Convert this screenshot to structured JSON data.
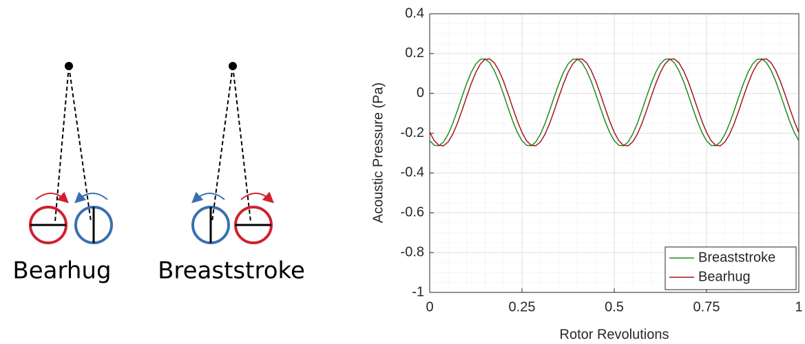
{
  "diagram": {
    "labels": [
      "Bearhug",
      "Breaststroke"
    ]
  },
  "chart_data": {
    "type": "line",
    "xlabel": "Rotor Revolutions",
    "ylabel": "Acoustic Pressure (Pa)",
    "x": [
      0,
      0.0125,
      0.025,
      0.0375,
      0.05,
      0.0625,
      0.075,
      0.0875,
      0.1,
      0.1125,
      0.125,
      0.1375,
      0.15,
      0.1625,
      0.175,
      0.1875,
      0.2,
      0.2125,
      0.225,
      0.2375,
      0.25,
      0.2625,
      0.275,
      0.2875,
      0.3,
      0.3125,
      0.325,
      0.3375,
      0.35,
      0.3625,
      0.375,
      0.3875,
      0.4,
      0.4125,
      0.425,
      0.4375,
      0.45,
      0.4625,
      0.475,
      0.4875,
      0.5,
      0.5125,
      0.525,
      0.5375,
      0.55,
      0.5625,
      0.575,
      0.5875,
      0.6,
      0.6125,
      0.625,
      0.6375,
      0.65,
      0.6625,
      0.675,
      0.6875,
      0.7,
      0.7125,
      0.725,
      0.7375,
      0.75,
      0.7625,
      0.775,
      0.7875,
      0.8,
      0.8125,
      0.825,
      0.8375,
      0.85,
      0.8625,
      0.875,
      0.8875,
      0.9,
      0.9125,
      0.925,
      0.9375,
      0.95,
      0.9625,
      0.975,
      0.9875,
      1
    ],
    "series": [
      {
        "name": "Breaststroke",
        "color": "#1e8c1e",
        "values": [
          -0.238,
          -0.261,
          -0.263,
          -0.244,
          -0.205,
          -0.151,
          -0.086,
          -0.017,
          0.049,
          0.106,
          0.148,
          0.171,
          0.173,
          0.154,
          0.115,
          0.061,
          -0.004,
          -0.073,
          -0.139,
          -0.196,
          -0.238,
          -0.261,
          -0.263,
          -0.244,
          -0.205,
          -0.151,
          -0.086,
          -0.017,
          0.049,
          0.106,
          0.148,
          0.171,
          0.173,
          0.154,
          0.115,
          0.061,
          -0.004,
          -0.073,
          -0.139,
          -0.196,
          -0.238,
          -0.261,
          -0.263,
          -0.244,
          -0.205,
          -0.151,
          -0.086,
          -0.017,
          0.049,
          0.106,
          0.148,
          0.171,
          0.173,
          0.154,
          0.115,
          0.061,
          -0.004,
          -0.073,
          -0.139,
          -0.196,
          -0.238,
          -0.261,
          -0.263,
          -0.244,
          -0.205,
          -0.151,
          -0.086,
          -0.017,
          0.049,
          0.106,
          0.148,
          0.171,
          0.173,
          0.154,
          0.115,
          0.061,
          -0.004,
          -0.073,
          -0.139,
          -0.196,
          -0.238
        ]
      },
      {
        "name": "Bearhug",
        "color": "#a3151f",
        "values": [
          -0.196,
          -0.238,
          -0.261,
          -0.263,
          -0.244,
          -0.205,
          -0.151,
          -0.086,
          -0.017,
          0.049,
          0.106,
          0.148,
          0.171,
          0.173,
          0.154,
          0.115,
          0.061,
          -0.004,
          -0.073,
          -0.139,
          -0.196,
          -0.238,
          -0.261,
          -0.263,
          -0.244,
          -0.205,
          -0.151,
          -0.086,
          -0.017,
          0.049,
          0.106,
          0.148,
          0.171,
          0.173,
          0.154,
          0.115,
          0.061,
          -0.004,
          -0.073,
          -0.139,
          -0.196,
          -0.238,
          -0.261,
          -0.263,
          -0.244,
          -0.205,
          -0.151,
          -0.086,
          -0.017,
          0.049,
          0.106,
          0.148,
          0.171,
          0.173,
          0.154,
          0.115,
          0.061,
          -0.004,
          -0.073,
          -0.139,
          -0.196,
          -0.238,
          -0.261,
          -0.263,
          -0.244,
          -0.205,
          -0.151,
          -0.086,
          -0.017,
          0.049,
          0.106,
          0.148,
          0.171,
          0.173,
          0.154,
          0.115,
          0.061,
          -0.004,
          -0.073,
          -0.139,
          -0.196
        ]
      }
    ],
    "xlim": [
      0,
      1
    ],
    "xticks": [
      0,
      0.25,
      0.5,
      0.75,
      1
    ],
    "ylim": [
      -1,
      0.4
    ],
    "yticks": [
      -1,
      -0.8,
      -0.6,
      -0.4,
      -0.2,
      0,
      0.2,
      0.4
    ],
    "grid": true,
    "minor_grid": true,
    "legend": "lower right"
  }
}
